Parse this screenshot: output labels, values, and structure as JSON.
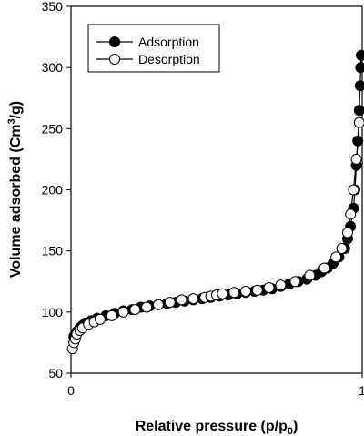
{
  "chart_data": {
    "type": "scatter",
    "title": "",
    "xlabel": {
      "main": "Relative pressure (p/p",
      "sub": "0",
      "tail": ")"
    },
    "ylabel": {
      "main": "Volume adsorbed (Cm",
      "sup": "3",
      "tail": "/g)"
    },
    "xlim": [
      0,
      1
    ],
    "ylim": [
      50,
      350
    ],
    "xticks": [
      0,
      1
    ],
    "xtick_labels": [
      "0",
      "1"
    ],
    "yticks": [
      50,
      100,
      150,
      200,
      250,
      300,
      350
    ],
    "ytick_labels": [
      "50",
      "100",
      "150",
      "200",
      "250",
      "300",
      "350"
    ],
    "grid": false,
    "legend_position": "top-left",
    "series": [
      {
        "name": "Adsorption",
        "marker": "filled-circle",
        "color": "#000000",
        "x": [
          0.01,
          0.02,
          0.03,
          0.04,
          0.05,
          0.07,
          0.09,
          0.12,
          0.15,
          0.18,
          0.21,
          0.24,
          0.27,
          0.3,
          0.33,
          0.36,
          0.39,
          0.42,
          0.45,
          0.48,
          0.51,
          0.54,
          0.57,
          0.6,
          0.63,
          0.66,
          0.69,
          0.72,
          0.75,
          0.78,
          0.81,
          0.84,
          0.86,
          0.88,
          0.9,
          0.92,
          0.94,
          0.95,
          0.96,
          0.97,
          0.975,
          0.98,
          0.985,
          0.99,
          0.993,
          0.995,
          0.997
        ],
        "y": [
          80,
          84,
          87,
          89,
          91,
          93,
          95,
          97,
          99,
          101,
          102,
          104,
          105,
          106,
          107,
          108,
          109,
          110,
          111,
          112,
          113,
          114,
          115,
          116,
          117,
          118,
          119,
          121,
          123,
          125,
          127,
          130,
          133,
          136,
          140,
          145,
          152,
          160,
          170,
          185,
          200,
          220,
          240,
          265,
          285,
          300,
          310
        ]
      },
      {
        "name": "Desorption",
        "marker": "open-circle",
        "color": "#000000",
        "x": [
          0.005,
          0.01,
          0.015,
          0.02,
          0.03,
          0.04,
          0.06,
          0.08,
          0.1,
          0.14,
          0.18,
          0.22,
          0.26,
          0.3,
          0.34,
          0.38,
          0.42,
          0.46,
          0.48,
          0.5,
          0.52,
          0.56,
          0.6,
          0.64,
          0.68,
          0.72,
          0.77,
          0.82,
          0.87,
          0.91,
          0.93,
          0.95,
          0.96,
          0.97,
          0.98,
          0.99
        ],
        "y": [
          70,
          75,
          78,
          82,
          85,
          87,
          90,
          92,
          94,
          97,
          100,
          102,
          104,
          106,
          108,
          110,
          111,
          112,
          113,
          114,
          115,
          116,
          117,
          118,
          120,
          122,
          125,
          130,
          136,
          145,
          152,
          165,
          180,
          200,
          225,
          255
        ]
      }
    ]
  }
}
